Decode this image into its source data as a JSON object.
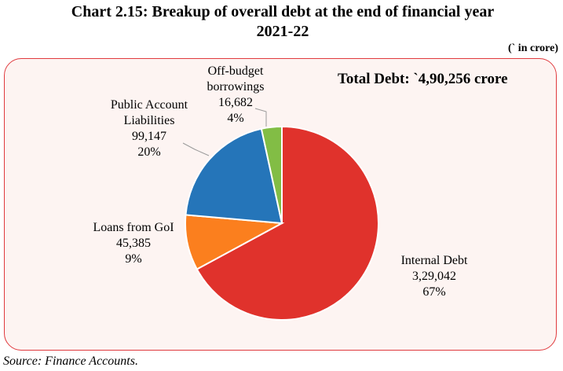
{
  "header": {
    "title_line1": "Chart 2.15: Breakup of overall debt at the end of financial year",
    "title_line2": "2021-22",
    "unit": "(` in crore)"
  },
  "annotation": {
    "total": "Total Debt: `4,90,256 crore"
  },
  "footer": {
    "source": "Source: Finance Accounts."
  },
  "chart_data": {
    "type": "pie",
    "title": "Chart 2.15: Breakup of overall debt at the end of financial year 2021-22",
    "unit": "(` in crore)",
    "total": 490256,
    "slices": [
      {
        "name": "Internal Debt",
        "value": 329042,
        "value_label": "3,29,042",
        "percent": "67%",
        "color": "#e0322c"
      },
      {
        "name": "Loans from GoI",
        "value": 45385,
        "value_label": "45,385",
        "percent": "9%",
        "color": "#fb7f1e"
      },
      {
        "name": "Public Account Liabilities",
        "value": 99147,
        "value_label": "99,147",
        "percent": "20%",
        "color": "#2575b9"
      },
      {
        "name": "Off-budget borrowings",
        "value": 16682,
        "value_label": "16,682",
        "percent": "4%",
        "color": "#82bd45"
      }
    ],
    "label_lines": {
      "internal_debt": [
        "Internal Debt"
      ],
      "loans_from_goi": [
        "Loans from GoI"
      ],
      "public_account": [
        "Public Account",
        "Liabilities"
      ],
      "off_budget": [
        "Off-budget",
        "borrowings"
      ]
    }
  }
}
